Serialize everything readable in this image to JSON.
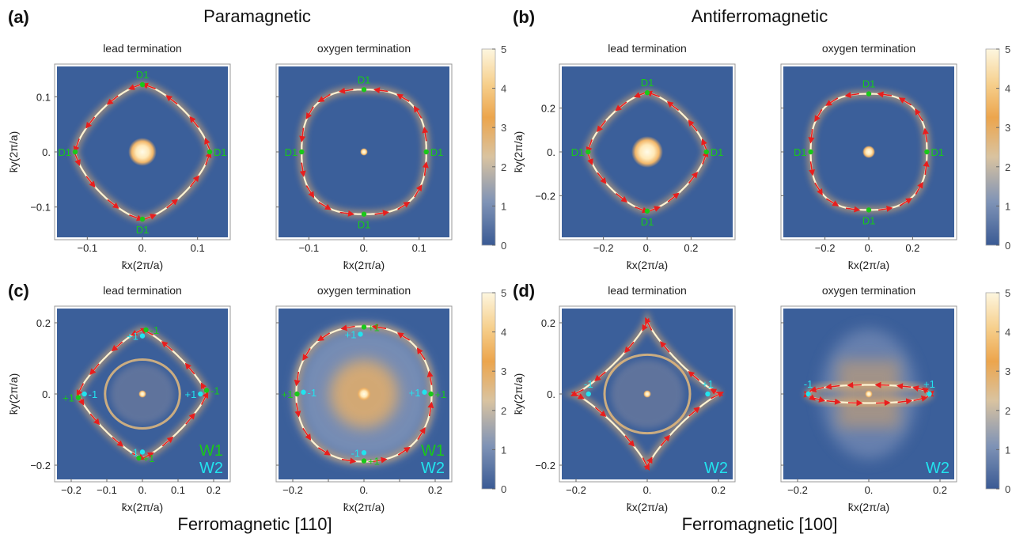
{
  "colors": {
    "low": "#3b5f9a",
    "mid": "#e8a652",
    "high": "#fdf6de",
    "arrow": "#e81e1e",
    "w1": "#19c919",
    "w2": "#22e3ee",
    "frame": "#999999",
    "text": "#222222"
  },
  "chart_data": {
    "type": "heatmap",
    "panels": [
      {
        "letter": "(a)",
        "title": "Paramagnetic",
        "subtitle": "",
        "colorbar": {
          "min": 0,
          "max": 5,
          "ticks": [
            "0",
            "1",
            "2",
            "3",
            "4",
            "5"
          ]
        },
        "subplots": [
          {
            "caption": "lead termination",
            "xlabel": "k̄x(2π/a)",
            "ylabel": "k̄y(2π/a)",
            "range": [
              -0.155,
              0.155
            ],
            "xticks": [
              {
                "v": -0.1,
                "t": "−0.1"
              },
              {
                "v": 0,
                "t": "0."
              },
              {
                "v": 0.1,
                "t": "0.1"
              }
            ],
            "yticks": [
              {
                "v": -0.1,
                "t": "−0.1"
              },
              {
                "v": 0,
                "t": "0."
              },
              {
                "v": 0.1,
                "t": "0.1"
              }
            ],
            "shape": "diamond",
            "R": 0.122,
            "n": 1.4,
            "center_r": 0.016,
            "markers": [
              {
                "x": 0,
                "y": 0.122,
                "label": "D1",
                "pos": "above",
                "color": "w1"
              },
              {
                "x": 0.122,
                "y": 0,
                "label": "D1",
                "pos": "right",
                "color": "w1"
              },
              {
                "x": 0,
                "y": -0.122,
                "label": "D1",
                "pos": "below",
                "color": "w1"
              },
              {
                "x": -0.122,
                "y": 0,
                "label": "D1",
                "pos": "left",
                "color": "w1"
              }
            ],
            "legend": []
          },
          {
            "caption": "oxygen termination",
            "xlabel": "k̄x(2π/a)",
            "ylabel": "",
            "range": [
              -0.155,
              0.155
            ],
            "xticks": [
              {
                "v": -0.1,
                "t": "−0.1"
              },
              {
                "v": 0,
                "t": "0."
              },
              {
                "v": 0.1,
                "t": "0.1"
              }
            ],
            "yticks": [
              {
                "v": -0.1,
                "t": ""
              },
              {
                "v": 0,
                "t": ""
              },
              {
                "v": 0.1,
                "t": ""
              }
            ],
            "shape": "astroid",
            "R": 0.113,
            "n": 0.78,
            "center_r": 0.004,
            "markers": [
              {
                "x": 0,
                "y": 0.113,
                "label": "D1",
                "pos": "above",
                "color": "w1"
              },
              {
                "x": 0.113,
                "y": 0,
                "label": "D1",
                "pos": "right",
                "color": "w1"
              },
              {
                "x": 0,
                "y": -0.113,
                "label": "D1",
                "pos": "below",
                "color": "w1"
              },
              {
                "x": -0.113,
                "y": 0,
                "label": "D1",
                "pos": "left",
                "color": "w1"
              }
            ],
            "legend": []
          }
        ]
      },
      {
        "letter": "(b)",
        "title": "Antiferromagnetic",
        "subtitle": "",
        "colorbar": {
          "min": 0,
          "max": 5,
          "ticks": [
            "0",
            "1",
            "2",
            "3",
            "4",
            "5"
          ]
        },
        "subplots": [
          {
            "caption": "lead termination",
            "xlabel": "k̄x(2π/a)",
            "ylabel": "k̄y(2π/a)",
            "range": [
              -0.39,
              0.39
            ],
            "xticks": [
              {
                "v": -0.2,
                "t": "−0.2"
              },
              {
                "v": 0,
                "t": "0."
              },
              {
                "v": 0.2,
                "t": "0.2"
              }
            ],
            "yticks": [
              {
                "v": -0.2,
                "t": "−0.2"
              },
              {
                "v": 0,
                "t": "0."
              },
              {
                "v": 0.2,
                "t": "0.2"
              }
            ],
            "shape": "diamond",
            "R": 0.27,
            "n": 1.4,
            "center_r": 0.045,
            "markers": [
              {
                "x": 0,
                "y": 0.27,
                "label": "D1",
                "pos": "above",
                "color": "w1"
              },
              {
                "x": 0.27,
                "y": 0,
                "label": "D1",
                "pos": "right",
                "color": "w1"
              },
              {
                "x": 0,
                "y": -0.27,
                "label": "D1",
                "pos": "below",
                "color": "w1"
              },
              {
                "x": -0.27,
                "y": 0,
                "label": "D1",
                "pos": "left",
                "color": "w1"
              }
            ],
            "legend": []
          },
          {
            "caption": "oxygen termination",
            "xlabel": "k̄x(2π/a)",
            "ylabel": "",
            "range": [
              -0.39,
              0.39
            ],
            "xticks": [
              {
                "v": -0.2,
                "t": "−0.2"
              },
              {
                "v": 0,
                "t": "0."
              },
              {
                "v": 0.2,
                "t": "0.2"
              }
            ],
            "yticks": [
              {
                "v": -0.2,
                "t": ""
              },
              {
                "v": 0,
                "t": ""
              },
              {
                "v": 0.2,
                "t": ""
              }
            ],
            "shape": "astroid",
            "R": 0.265,
            "n": 0.78,
            "center_r": 0.018,
            "markers": [
              {
                "x": 0,
                "y": 0.265,
                "label": "D1",
                "pos": "above",
                "color": "w1"
              },
              {
                "x": 0.265,
                "y": 0,
                "label": "D1",
                "pos": "right",
                "color": "w1"
              },
              {
                "x": 0,
                "y": -0.265,
                "label": "D1",
                "pos": "below",
                "color": "w1"
              },
              {
                "x": -0.265,
                "y": 0,
                "label": "D1",
                "pos": "left",
                "color": "w1"
              }
            ],
            "legend": []
          }
        ]
      },
      {
        "letter": "(c)",
        "title": "",
        "subtitle": "Ferromagnetic [110]",
        "colorbar": {
          "min": 0,
          "max": 5,
          "ticks": [
            "0",
            "1",
            "2",
            "3",
            "4",
            "5"
          ]
        },
        "subplots": [
          {
            "caption": "lead termination",
            "xlabel": "k̄x(2π/a)",
            "ylabel": "k̄y(2π/a)",
            "range": [
              -0.24,
              0.24
            ],
            "xticks": [
              {
                "v": -0.2,
                "t": "−0.2"
              },
              {
                "v": -0.1,
                "t": "−0.1"
              },
              {
                "v": 0,
                "t": "0."
              },
              {
                "v": 0.1,
                "t": "0.1"
              },
              {
                "v": 0.2,
                "t": "0.2"
              }
            ],
            "yticks": [
              {
                "v": -0.2,
                "t": "−0.2"
              },
              {
                "v": 0,
                "t": "0."
              },
              {
                "v": 0.2,
                "t": "0.2"
              }
            ],
            "shape": "diamond",
            "R": 0.18,
            "n": 1.6,
            "center_r": 0.002,
            "inner_r": 0.105,
            "markers": [
              {
                "x": 0.01,
                "y": 0.18,
                "label": "-1",
                "pos": "right",
                "color": "w1"
              },
              {
                "x": 0,
                "y": 0.163,
                "label": "+1",
                "pos": "left",
                "color": "w2"
              },
              {
                "x": 0.18,
                "y": 0.01,
                "label": "-1",
                "pos": "right",
                "color": "w1"
              },
              {
                "x": 0.163,
                "y": 0,
                "label": "+1",
                "pos": "left",
                "color": "w2"
              },
              {
                "x": -0.01,
                "y": -0.18,
                "label": "+1",
                "pos": "right",
                "color": "w1"
              },
              {
                "x": 0,
                "y": -0.163,
                "label": "-1",
                "pos": "left",
                "color": "w2"
              },
              {
                "x": -0.18,
                "y": -0.01,
                "label": "+1",
                "pos": "left",
                "color": "w1"
              },
              {
                "x": -0.163,
                "y": 0,
                "label": "-1",
                "pos": "right",
                "color": "w2"
              }
            ],
            "legend": [
              {
                "label": "W1",
                "color": "w1"
              },
              {
                "label": "W2",
                "color": "w2"
              }
            ]
          },
          {
            "caption": "oxygen termination",
            "xlabel": "k̄x(2π/a)",
            "ylabel": "",
            "range": [
              -0.24,
              0.24
            ],
            "xticks": [
              {
                "v": -0.2,
                "t": "−0.2"
              },
              {
                "v": -0.1,
                "t": ""
              },
              {
                "v": 0,
                "t": "0."
              },
              {
                "v": 0.1,
                "t": ""
              },
              {
                "v": 0.2,
                "t": "0.2"
              }
            ],
            "yticks": [
              {
                "v": -0.2,
                "t": ""
              },
              {
                "v": 0,
                "t": ""
              },
              {
                "v": 0.2,
                "t": ""
              }
            ],
            "shape": "cloud",
            "R": 0.19,
            "n": 0.9,
            "center_r": 0.012,
            "markers": [
              {
                "x": 0,
                "y": 0.188,
                "label": "+1",
                "pos": "right",
                "color": "w1"
              },
              {
                "x": -0.01,
                "y": 0.168,
                "label": "+1",
                "pos": "left",
                "color": "w2"
              },
              {
                "x": 0.188,
                "y": 0,
                "label": "+1",
                "pos": "right",
                "color": "w1"
              },
              {
                "x": 0.17,
                "y": 0.005,
                "label": "+1",
                "pos": "left",
                "color": "w2"
              },
              {
                "x": 0,
                "y": -0.188,
                "label": "+1",
                "pos": "right",
                "color": "w1"
              },
              {
                "x": 0,
                "y": -0.165,
                "label": "-1",
                "pos": "left",
                "color": "w2"
              },
              {
                "x": -0.188,
                "y": 0,
                "label": "+1",
                "pos": "left",
                "color": "w1"
              },
              {
                "x": -0.17,
                "y": 0.005,
                "label": "-1",
                "pos": "right",
                "color": "w2"
              }
            ],
            "legend": [
              {
                "label": "W1",
                "color": "w1"
              },
              {
                "label": "W2",
                "color": "w2"
              }
            ]
          }
        ]
      },
      {
        "letter": "(d)",
        "title": "",
        "subtitle": "Ferromagnetic [100]",
        "colorbar": {
          "min": 0,
          "max": 5,
          "ticks": [
            "0",
            "1",
            "2",
            "3",
            "4",
            "5"
          ]
        },
        "subplots": [
          {
            "caption": "lead termination",
            "xlabel": "k̄x(2π/a)",
            "ylabel": "k̄y(2π/a)",
            "range": [
              -0.24,
              0.24
            ],
            "xticks": [
              {
                "v": -0.2,
                "t": "−0.2"
              },
              {
                "v": 0,
                "t": "0."
              },
              {
                "v": 0.2,
                "t": "0.2"
              }
            ],
            "yticks": [
              {
                "v": -0.2,
                "t": "−0.2"
              },
              {
                "v": 0,
                "t": "0."
              },
              {
                "v": 0.2,
                "t": "0.2"
              }
            ],
            "shape": "rounded",
            "R": 0.205,
            "n": 2.4,
            "center_r": 0.004,
            "inner_r": 0.12,
            "markers": [
              {
                "x": -0.165,
                "y": 0,
                "label": "-1",
                "pos": "above",
                "color": "w2"
              },
              {
                "x": 0.17,
                "y": 0,
                "label": "+1",
                "pos": "above",
                "color": "w2"
              }
            ],
            "legend": [
              {
                "label": "W2",
                "color": "w2"
              }
            ]
          },
          {
            "caption": "oxygen termination",
            "xlabel": "k̄x(2π/a)",
            "ylabel": "",
            "range": [
              -0.24,
              0.24
            ],
            "xticks": [
              {
                "v": -0.2,
                "t": "−0.2"
              },
              {
                "v": 0,
                "t": "0."
              },
              {
                "v": 0.2,
                "t": "0.2"
              }
            ],
            "yticks": [
              {
                "v": -0.2,
                "t": ""
              },
              {
                "v": 0,
                "t": ""
              },
              {
                "v": 0.2,
                "t": ""
              }
            ],
            "shape": "hook",
            "R": 0.17,
            "n": 0.9,
            "center_r": 0.006,
            "markers": [
              {
                "x": -0.17,
                "y": 0,
                "label": "-1",
                "pos": "above",
                "color": "w2"
              },
              {
                "x": 0.17,
                "y": 0,
                "label": "+1",
                "pos": "above",
                "color": "w2"
              }
            ],
            "legend": [
              {
                "label": "W2",
                "color": "w2"
              }
            ]
          }
        ]
      }
    ]
  }
}
